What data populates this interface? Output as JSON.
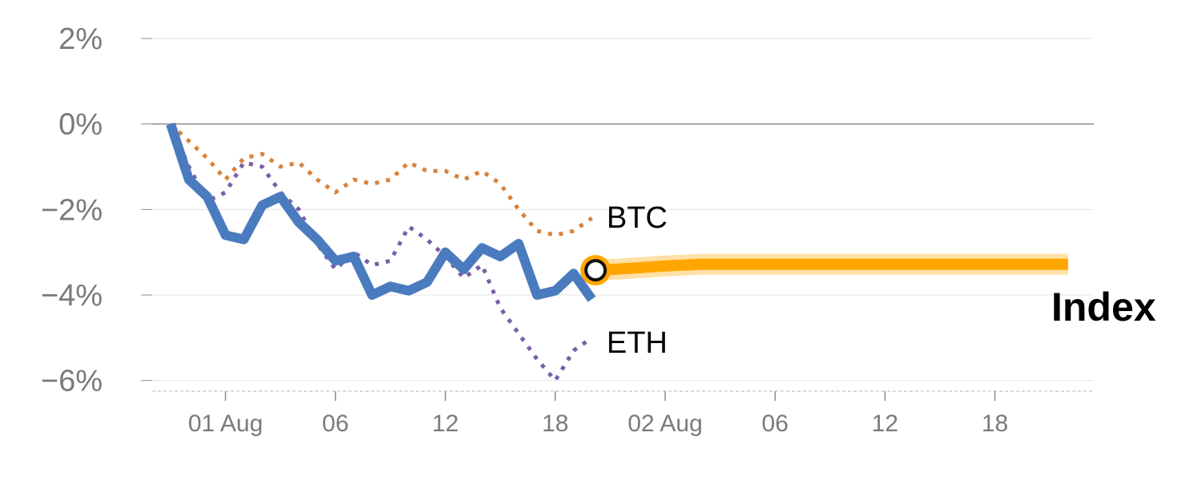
{
  "chart_data": {
    "type": "line",
    "y_tick_labels": [
      "2%",
      "0%",
      "−2%",
      "−4%",
      "−6%"
    ],
    "y_ticks": [
      2,
      0,
      -2,
      -4,
      -6
    ],
    "ylim": [
      -6.25,
      2.0
    ],
    "x_tick_labels": [
      "01 Aug",
      "06",
      "12",
      "18",
      "02 Aug",
      "06",
      "12",
      "18"
    ],
    "x_ticks": [
      2.0,
      5.0,
      8.0,
      11.0,
      14.0,
      17.0,
      20.0,
      23.0
    ],
    "xlim": [
      0.0,
      25.7
    ],
    "grid": "horizontal",
    "series": [
      {
        "name": "BTC",
        "color": "#d9823b",
        "style": "dotted",
        "x": [
          0.5,
          1.0,
          1.5,
          2.0,
          2.5,
          3.0,
          3.5,
          4.0,
          4.5,
          5.0,
          5.5,
          6.0,
          6.5,
          7.0,
          7.5,
          8.0,
          8.5,
          9.0,
          9.5,
          10.0,
          10.5,
          11.0,
          11.5,
          12.0
        ],
        "values": [
          0.0,
          -0.4,
          -0.8,
          -1.3,
          -0.8,
          -0.7,
          -1.0,
          -0.9,
          -1.3,
          -1.6,
          -1.3,
          -1.4,
          -1.3,
          -0.9,
          -1.1,
          -1.1,
          -1.3,
          -1.1,
          -1.4,
          -2.0,
          -2.5,
          -2.6,
          -2.5,
          -2.2
        ]
      },
      {
        "name": "ETH",
        "color": "#7b5ea7",
        "style": "dotted",
        "x": [
          0.5,
          1.0,
          1.5,
          2.0,
          2.5,
          3.0,
          3.5,
          4.0,
          4.5,
          5.0,
          5.5,
          6.0,
          6.5,
          7.0,
          7.5,
          8.0,
          8.5,
          9.0,
          9.5,
          10.0,
          10.5,
          11.0,
          11.5,
          12.0
        ],
        "values": [
          0.0,
          -1.0,
          -1.8,
          -1.6,
          -0.9,
          -1.0,
          -1.6,
          -2.0,
          -2.8,
          -3.4,
          -3.0,
          -3.3,
          -3.2,
          -2.4,
          -2.7,
          -3.1,
          -3.6,
          -3.3,
          -4.3,
          -4.9,
          -5.5,
          -6.0,
          -5.3,
          -5.0
        ]
      },
      {
        "name": "Index",
        "color": "#4a7bbf",
        "style": "solid",
        "x": [
          0.5,
          1.0,
          1.5,
          2.0,
          2.5,
          3.0,
          3.5,
          4.0,
          4.5,
          5.0,
          5.5,
          6.0,
          6.5,
          7.0,
          7.5,
          8.0,
          8.5,
          9.0,
          9.5,
          10.0,
          10.5,
          11.0,
          11.5,
          12.0
        ],
        "values": [
          0.0,
          -1.3,
          -1.7,
          -2.6,
          -2.7,
          -1.9,
          -1.7,
          -2.3,
          -2.7,
          -3.2,
          -3.1,
          -4.0,
          -3.8,
          -3.9,
          -3.7,
          -3.0,
          -3.4,
          -2.9,
          -3.1,
          -2.8,
          -4.0,
          -3.9,
          -3.5,
          -4.1
        ]
      },
      {
        "name": "Index projection",
        "color": "#ffa600",
        "style": "band",
        "x": [
          12.1,
          13.0,
          14.0,
          15.0,
          16.0,
          17.0,
          18.0,
          19.0,
          20.0,
          21.0,
          22.0,
          23.0,
          24.0,
          25.0
        ],
        "values": [
          -3.42,
          -3.38,
          -3.32,
          -3.28,
          -3.28,
          -3.28,
          -3.28,
          -3.28,
          -3.28,
          -3.28,
          -3.28,
          -3.28,
          -3.28,
          -3.28
        ]
      }
    ],
    "marker": {
      "x": 12.1,
      "y": -3.42,
      "color": "#ffa600"
    },
    "labels": {
      "btc": "BTC",
      "eth": "ETH",
      "index": "Index"
    }
  }
}
